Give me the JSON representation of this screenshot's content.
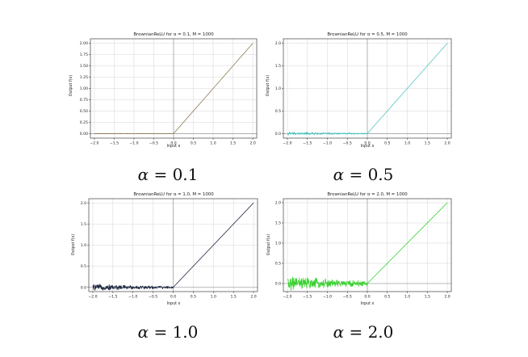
{
  "captions": [
    {
      "symbol": "α",
      "rest": " = 0.1"
    },
    {
      "symbol": "α",
      "rest": " = 0.5"
    },
    {
      "symbol": "α",
      "rest": " = 1.0"
    },
    {
      "symbol": "α",
      "rest": " = 2.0"
    }
  ],
  "chart_data": [
    {
      "type": "line",
      "title": "BrownianReLU for α = 0.1, M = 1000",
      "xlabel": "Input x",
      "ylabel": "Output f(x)",
      "xlim": [
        -2.1,
        2.1
      ],
      "ylim": [
        -0.1,
        2.1
      ],
      "xticks": [
        -2.0,
        -1.5,
        -1.0,
        -0.5,
        0.0,
        0.5,
        1.0,
        1.5,
        2.0
      ],
      "yticks": [
        0.0,
        0.25,
        0.5,
        0.75,
        1.0,
        1.25,
        1.5,
        1.75,
        2.0
      ],
      "ytick_labels": [
        "0.00",
        "0.25",
        "0.50",
        "0.75",
        "1.00",
        "1.25",
        "1.50",
        "1.75",
        "2.00"
      ],
      "grid": true,
      "color": "#8b7a4e",
      "series": [
        {
          "alpha": 0.1,
          "noise_amplitude": 0.006,
          "x": [
            -2.0,
            0.0,
            2.0
          ],
          "y": [
            0.0,
            0.0,
            2.0
          ]
        }
      ]
    },
    {
      "type": "line",
      "title": "BrownianReLU for α = 0.5, M = 1000",
      "xlabel": "Input x",
      "ylabel": "Output f(x)",
      "xlim": [
        -2.1,
        2.1
      ],
      "ylim": [
        -0.1,
        2.1
      ],
      "xticks": [
        -2.0,
        -1.5,
        -1.0,
        -0.5,
        0.0,
        0.5,
        1.0,
        1.5,
        2.0
      ],
      "yticks": [
        0.0,
        0.5,
        1.0,
        1.5,
        2.0
      ],
      "ytick_labels": [
        "0.0",
        "0.5",
        "1.0",
        "1.5",
        "2.0"
      ],
      "grid": true,
      "color": "#4fc6c0",
      "series": [
        {
          "alpha": 0.5,
          "noise_amplitude": 0.03,
          "x": [
            -2.0,
            0.0,
            2.0
          ],
          "y": [
            0.0,
            0.0,
            2.0
          ]
        }
      ]
    },
    {
      "type": "line",
      "title": "BrownianReLU for α = 1.0, M = 1000",
      "xlabel": "Input x",
      "ylabel": "Output f(x)",
      "xlim": [
        -2.1,
        2.1
      ],
      "ylim": [
        -0.1,
        2.1
      ],
      "xticks": [
        -2.0,
        -1.5,
        -1.0,
        -0.5,
        0.0,
        0.5,
        1.0,
        1.5,
        2.0
      ],
      "yticks": [
        0.0,
        0.5,
        1.0,
        1.5,
        2.0
      ],
      "ytick_labels": [
        "0.0",
        "0.5",
        "1.0",
        "1.5",
        "2.0"
      ],
      "grid": true,
      "color": "#1c2540",
      "series": [
        {
          "alpha": 1.0,
          "noise_amplitude": 0.06,
          "x": [
            -2.0,
            0.0,
            2.0
          ],
          "y": [
            0.0,
            0.0,
            2.0
          ]
        }
      ]
    },
    {
      "type": "line",
      "title": "BrownianReLU for α = 2.0, M = 1000",
      "xlabel": "Input x",
      "ylabel": "Output f(x)",
      "xlim": [
        -2.1,
        2.1
      ],
      "ylim": [
        -0.2,
        2.1
      ],
      "xticks": [
        -2.0,
        -1.5,
        -1.0,
        -0.5,
        0.0,
        0.5,
        1.0,
        1.5,
        2.0
      ],
      "yticks": [
        0.0,
        0.5,
        1.0,
        1.5,
        2.0
      ],
      "ytick_labels": [
        "0.0",
        "0.5",
        "1.0",
        "1.5",
        "2.0"
      ],
      "grid": true,
      "color": "#34d02c",
      "series": [
        {
          "alpha": 2.0,
          "noise_amplitude": 0.14,
          "x": [
            -2.0,
            0.0,
            2.0
          ],
          "y": [
            0.0,
            0.0,
            2.0
          ]
        }
      ]
    }
  ]
}
